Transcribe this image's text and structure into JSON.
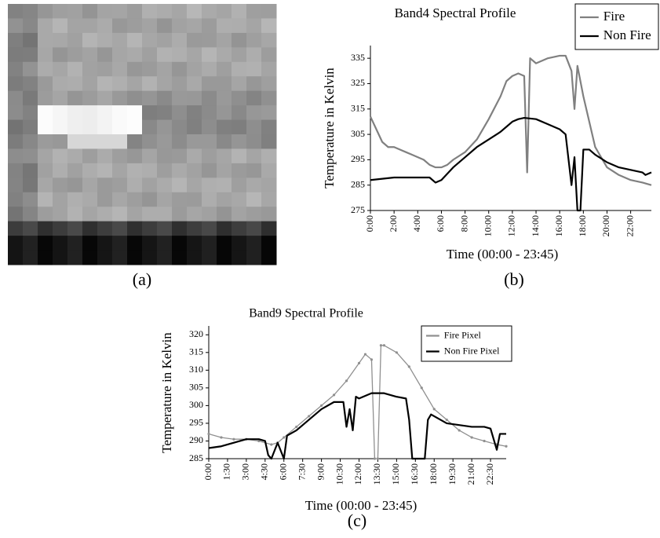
{
  "image_caption": "(a)",
  "chart_data": [
    {
      "type": "line",
      "title": "Band4 Spectral Profile",
      "caption": "(b)",
      "xlabel": "Time (00:00 - 23:45)",
      "ylabel": "Temperature in Kelvin",
      "xlim": [
        0,
        23.75
      ],
      "ylim": [
        275,
        340
      ],
      "xticks": [
        {
          "value": 0,
          "label": "0:00"
        },
        {
          "value": 2,
          "label": "2:00"
        },
        {
          "value": 4,
          "label": "4:00"
        },
        {
          "value": 6,
          "label": "6:00"
        },
        {
          "value": 8,
          "label": "8:00"
        },
        {
          "value": 10,
          "label": "10:00"
        },
        {
          "value": 12,
          "label": "12:00"
        },
        {
          "value": 14,
          "label": "14:00"
        },
        {
          "value": 16,
          "label": "16:00"
        },
        {
          "value": 18,
          "label": "18:00"
        },
        {
          "value": 20,
          "label": "20:00"
        },
        {
          "value": 22,
          "label": "22:00"
        }
      ],
      "yticks": [
        275,
        285,
        295,
        305,
        315,
        325,
        335
      ],
      "legend": "top-right",
      "series": [
        {
          "name": "Fire",
          "color": "#808080",
          "x": [
            0,
            0.5,
            1,
            1.5,
            2,
            2.5,
            3,
            3.5,
            4,
            4.5,
            5,
            5.5,
            6,
            6.5,
            7,
            8,
            9,
            10,
            11,
            11.5,
            12,
            12.5,
            13,
            13.25,
            13.5,
            14,
            14.5,
            15,
            16,
            16.5,
            17,
            17.25,
            17.5,
            18,
            18.5,
            19,
            20,
            21,
            22,
            23,
            23.75
          ],
          "values": [
            312,
            307,
            302,
            300,
            300,
            299,
            298,
            297,
            296,
            295,
            293,
            292,
            292,
            293,
            295,
            298,
            303,
            311,
            320,
            326,
            328,
            329,
            328,
            290,
            335,
            333,
            334,
            335,
            336,
            336,
            330,
            315,
            332,
            320,
            310,
            300,
            292,
            289,
            287,
            286,
            285
          ]
        },
        {
          "name": "Non Fire",
          "color": "#000000",
          "x": [
            0,
            1,
            2,
            3,
            4,
            5,
            5.5,
            6,
            7,
            8,
            9,
            10,
            11,
            11.5,
            12,
            12.5,
            13,
            14,
            15,
            16,
            16.5,
            17,
            17.25,
            17.5,
            17.75,
            18,
            18.5,
            19,
            20,
            21,
            22,
            23,
            23.25,
            23.75
          ],
          "values": [
            287,
            287.5,
            288,
            288,
            288,
            288,
            286,
            287,
            292,
            296,
            300,
            303,
            306,
            308,
            310,
            311,
            311.5,
            311,
            309,
            307,
            305,
            285,
            296,
            275,
            275,
            299,
            299,
            297,
            294,
            292,
            291,
            290,
            289,
            290
          ]
        }
      ]
    },
    {
      "type": "line",
      "title": "Band9 Spectral Profile",
      "caption": "(c)",
      "xlabel": "Time (00:00 - 23:45)",
      "ylabel": "Temperature in Kelvin",
      "xlim": [
        0,
        23.75
      ],
      "ylim": [
        285,
        322.5
      ],
      "xticks": [
        {
          "value": 0,
          "label": "0:00"
        },
        {
          "value": 1.5,
          "label": "1:30"
        },
        {
          "value": 3,
          "label": "3:00"
        },
        {
          "value": 4.5,
          "label": "4:30"
        },
        {
          "value": 6,
          "label": "6:00"
        },
        {
          "value": 7.5,
          "label": "7:30"
        },
        {
          "value": 9,
          "label": "9:00"
        },
        {
          "value": 10.5,
          "label": "10:30"
        },
        {
          "value": 12,
          "label": "12:00"
        },
        {
          "value": 13.5,
          "label": "13:30"
        },
        {
          "value": 15,
          "label": "15:00"
        },
        {
          "value": 16.5,
          "label": "16:30"
        },
        {
          "value": 18,
          "label": "18:00"
        },
        {
          "value": 19.5,
          "label": "19:30"
        },
        {
          "value": 21,
          "label": "21:00"
        },
        {
          "value": 22.5,
          "label": "22:30"
        }
      ],
      "yticks": [
        285,
        290,
        295,
        300,
        305,
        310,
        315,
        320
      ],
      "legend": "top-right",
      "series": [
        {
          "name": "Fire Pixel",
          "color": "#909090",
          "markers": true,
          "x": [
            0,
            1,
            2,
            3,
            4,
            5,
            5.5,
            6,
            7,
            8,
            9,
            10,
            11,
            12,
            12.5,
            13,
            13.25,
            13.5,
            13.75,
            14,
            15,
            16,
            17,
            18,
            19,
            20,
            21,
            22,
            23,
            23.75
          ],
          "values": [
            292,
            291,
            290.5,
            290.5,
            290,
            289,
            289.5,
            291,
            294,
            297,
            300,
            303,
            307,
            312,
            314.5,
            313,
            285,
            285,
            317,
            317,
            315,
            311,
            305,
            299,
            296,
            293,
            291,
            290,
            289,
            288.5
          ]
        },
        {
          "name": "Non Fire Pixel",
          "color": "#000000",
          "x": [
            0,
            1,
            2,
            3,
            4,
            4.5,
            4.75,
            5,
            5.5,
            6,
            6.25,
            7,
            8,
            9,
            10,
            10.75,
            11,
            11.25,
            11.5,
            11.75,
            12,
            13,
            14,
            15,
            15.75,
            16,
            16.25,
            17.25,
            17.5,
            17.75,
            18,
            19,
            20,
            21,
            22,
            22.5,
            23,
            23.25,
            23.75
          ],
          "values": [
            288,
            288.5,
            289.5,
            290.5,
            290.5,
            290,
            286,
            285,
            289.5,
            285,
            291.5,
            293,
            296,
            299,
            301,
            301,
            294,
            299,
            293,
            302.5,
            302,
            303.5,
            303.5,
            302.5,
            302,
            296,
            285,
            285,
            296,
            297.5,
            297,
            295,
            294.5,
            294,
            294,
            293.5,
            287.5,
            292,
            292
          ]
        }
      ]
    }
  ]
}
